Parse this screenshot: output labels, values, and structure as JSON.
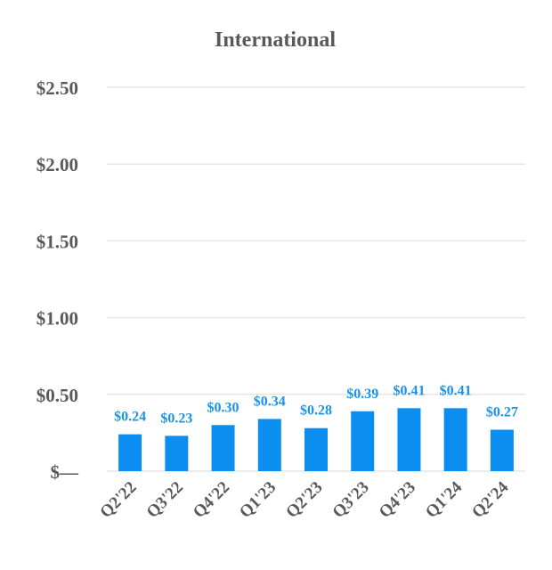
{
  "chart_data": {
    "type": "bar",
    "title": "International",
    "categories": [
      "Q2'22",
      "Q3'22",
      "Q4'22",
      "Q1'23",
      "Q2'23",
      "Q3'23",
      "Q4'23",
      "Q1'24",
      "Q2'24"
    ],
    "values": [
      0.24,
      0.23,
      0.3,
      0.34,
      0.28,
      0.39,
      0.41,
      0.41,
      0.27
    ],
    "data_labels": [
      "$0.24",
      "$0.23",
      "$0.30",
      "$0.34",
      "$0.28",
      "$0.39",
      "$0.41",
      "$0.41",
      "$0.27"
    ],
    "ylim": [
      0,
      2.5
    ],
    "yticks": [
      0,
      0.5,
      1.0,
      1.5,
      2.0,
      2.5
    ],
    "ytick_labels": [
      "$—",
      "$0.50",
      "$1.00",
      "$1.50",
      "$2.00",
      "$2.50"
    ],
    "xlabel": "",
    "ylabel": "",
    "grid": true,
    "legend": "none",
    "bar_color": "#0c8ef0",
    "label_color": "#1a94e6"
  }
}
